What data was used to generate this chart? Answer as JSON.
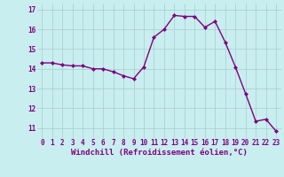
{
  "x": [
    0,
    1,
    2,
    3,
    4,
    5,
    6,
    7,
    8,
    9,
    10,
    11,
    12,
    13,
    14,
    15,
    16,
    17,
    18,
    19,
    20,
    21,
    22,
    23
  ],
  "y": [
    14.3,
    14.3,
    14.2,
    14.15,
    14.15,
    14.0,
    14.0,
    13.85,
    13.65,
    13.5,
    14.1,
    15.6,
    16.0,
    16.7,
    16.65,
    16.65,
    16.1,
    16.4,
    15.35,
    14.1,
    12.75,
    11.35,
    11.45,
    10.85
  ],
  "line_color": "#800080",
  "marker": "D",
  "marker_size": 2.0,
  "bg_color": "#c8eef0",
  "grid_color": "#aacccc",
  "xlabel": "Windchill (Refroidissement éolien,°C)",
  "ylim": [
    10.5,
    17.3
  ],
  "xlim": [
    -0.5,
    23.5
  ],
  "yticks": [
    11,
    12,
    13,
    14,
    15,
    16,
    17
  ],
  "xticks": [
    0,
    1,
    2,
    3,
    4,
    5,
    6,
    7,
    8,
    9,
    10,
    11,
    12,
    13,
    14,
    15,
    16,
    17,
    18,
    19,
    20,
    21,
    22,
    23
  ],
  "tick_label_color": "#800080",
  "tick_label_size": 5.5,
  "xlabel_size": 6.5,
  "line_width": 1.0
}
